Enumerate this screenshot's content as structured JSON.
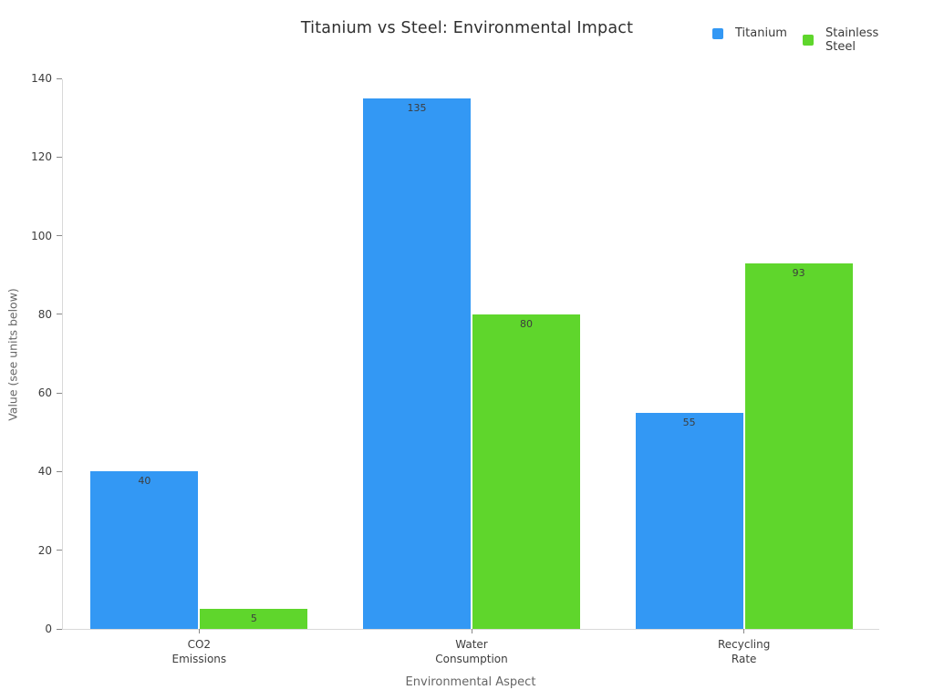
{
  "page": {
    "background": "#ffffff"
  },
  "chart_data": {
    "type": "bar",
    "title": "Titanium vs Steel: Environmental Impact",
    "categories": [
      "CO2 Emissions",
      "Water Consumption",
      "Recycling Rate"
    ],
    "series": [
      {
        "name": "Titanium",
        "color": "#3398F4",
        "values": [
          40,
          135,
          55
        ]
      },
      {
        "name": "Stainless Steel",
        "color": "#5FD62C",
        "values": [
          5,
          80,
          93
        ]
      }
    ],
    "xlabel": "Environmental Aspect",
    "ylabel": "Value (see units below)",
    "ylim": [
      0,
      140
    ],
    "yticks": [
      0,
      20,
      40,
      60,
      80,
      100,
      120,
      140
    ],
    "grid": false,
    "legend_position": "top-right",
    "bar_value_labels": true
  },
  "colors": {
    "axis_line": "#d9d9d9",
    "tick_mark": "#888888",
    "tick_label": "#3d3d3d",
    "axis_title": "#666666",
    "title_text": "#2f2f2f",
    "bar_value_label": "#3d3d3d"
  }
}
